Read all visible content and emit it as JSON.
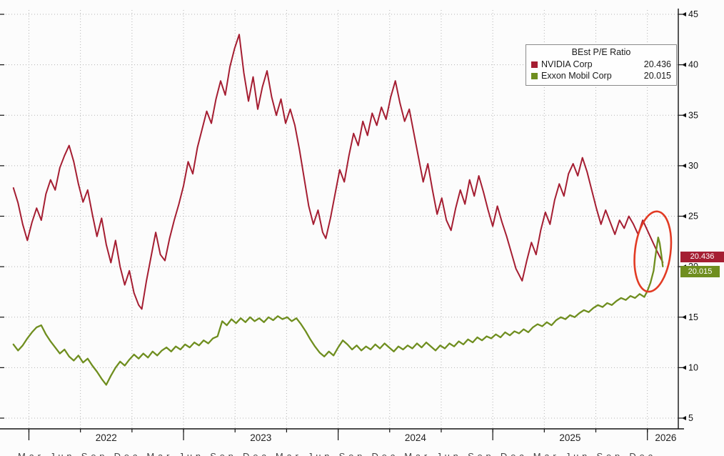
{
  "chart_data": {
    "type": "line",
    "title": "BEst P/E Ratio",
    "xlabel": "",
    "ylabel": "",
    "grid": "dotted",
    "x_axis": {
      "range": [
        2021.85,
        2026.2
      ],
      "ticks": [
        2022,
        2023,
        2024,
        2025,
        2026
      ],
      "tick_labels": [
        "2022",
        "2023",
        "2024",
        "2025",
        "2026"
      ],
      "clipped_month_row": "Mar Jun Sep Dec Mar Jun Sep Dec Mar Jun Sep Dec Mar Jun Sep Dec Mar Jun Sep Dec"
    },
    "y_axis": {
      "side": "right",
      "range": [
        5,
        45
      ],
      "ticks": [
        45,
        40,
        35,
        30,
        25,
        20,
        15,
        10,
        5
      ]
    },
    "legend": {
      "position": "top-right",
      "title": "BEst P/E Ratio",
      "entries": [
        {
          "label": "NVIDIA Corp",
          "value": "20.436"
        },
        {
          "label": "Exxon Mobil Corp",
          "value": "20.015"
        }
      ]
    },
    "last_value_boxes": {
      "nvidia": "20.436",
      "exxon": "20.015"
    },
    "annotations": [
      {
        "type": "ellipse",
        "purpose": "highlight-convergence",
        "x": 2026.035,
        "y": 21.5,
        "rx_years": 0.115,
        "ry_value": 4.0,
        "rotation_deg": 7,
        "color": "#e23b24"
      }
    ],
    "series": [
      {
        "name": "NVIDIA Corp",
        "color": "#a51e32",
        "last_value": 20.436,
        "points": [
          [
            2021.9,
            27.8
          ],
          [
            2021.93,
            26.3
          ],
          [
            2021.96,
            24.2
          ],
          [
            2021.99,
            22.6
          ],
          [
            2022.02,
            24.4
          ],
          [
            2022.05,
            25.8
          ],
          [
            2022.08,
            24.6
          ],
          [
            2022.11,
            27.2
          ],
          [
            2022.14,
            28.6
          ],
          [
            2022.17,
            27.6
          ],
          [
            2022.2,
            29.8
          ],
          [
            2022.23,
            31.0
          ],
          [
            2022.26,
            32.0
          ],
          [
            2022.29,
            30.4
          ],
          [
            2022.32,
            28.2
          ],
          [
            2022.35,
            26.4
          ],
          [
            2022.38,
            27.6
          ],
          [
            2022.41,
            25.2
          ],
          [
            2022.44,
            23.0
          ],
          [
            2022.47,
            24.8
          ],
          [
            2022.5,
            22.2
          ],
          [
            2022.53,
            20.4
          ],
          [
            2022.56,
            22.6
          ],
          [
            2022.59,
            20.0
          ],
          [
            2022.62,
            18.2
          ],
          [
            2022.65,
            19.6
          ],
          [
            2022.68,
            17.4
          ],
          [
            2022.71,
            16.2
          ],
          [
            2022.73,
            15.8
          ],
          [
            2022.76,
            18.6
          ],
          [
            2022.79,
            21.0
          ],
          [
            2022.82,
            23.4
          ],
          [
            2022.85,
            21.2
          ],
          [
            2022.88,
            20.6
          ],
          [
            2022.91,
            22.8
          ],
          [
            2022.94,
            24.6
          ],
          [
            2022.97,
            26.2
          ],
          [
            2023.0,
            28.0
          ],
          [
            2023.03,
            30.4
          ],
          [
            2023.06,
            29.2
          ],
          [
            2023.09,
            31.8
          ],
          [
            2023.12,
            33.6
          ],
          [
            2023.15,
            35.4
          ],
          [
            2023.18,
            34.2
          ],
          [
            2023.21,
            36.6
          ],
          [
            2023.24,
            38.4
          ],
          [
            2023.27,
            37.0
          ],
          [
            2023.3,
            39.8
          ],
          [
            2023.33,
            41.6
          ],
          [
            2023.36,
            43.0
          ],
          [
            2023.39,
            39.2
          ],
          [
            2023.42,
            36.4
          ],
          [
            2023.45,
            38.8
          ],
          [
            2023.48,
            35.6
          ],
          [
            2023.51,
            37.8
          ],
          [
            2023.54,
            39.4
          ],
          [
            2023.57,
            36.8
          ],
          [
            2023.6,
            35.0
          ],
          [
            2023.63,
            36.6
          ],
          [
            2023.66,
            34.2
          ],
          [
            2023.69,
            35.6
          ],
          [
            2023.72,
            34.0
          ],
          [
            2023.75,
            31.6
          ],
          [
            2023.78,
            28.8
          ],
          [
            2023.81,
            26.0
          ],
          [
            2023.84,
            24.2
          ],
          [
            2023.87,
            25.6
          ],
          [
            2023.9,
            23.4
          ],
          [
            2023.92,
            22.8
          ],
          [
            2023.95,
            24.8
          ],
          [
            2023.98,
            27.2
          ],
          [
            2024.01,
            29.6
          ],
          [
            2024.04,
            28.4
          ],
          [
            2024.07,
            31.0
          ],
          [
            2024.1,
            33.2
          ],
          [
            2024.13,
            32.0
          ],
          [
            2024.16,
            34.4
          ],
          [
            2024.19,
            33.0
          ],
          [
            2024.22,
            35.2
          ],
          [
            2024.25,
            34.0
          ],
          [
            2024.28,
            35.8
          ],
          [
            2024.31,
            34.6
          ],
          [
            2024.34,
            36.8
          ],
          [
            2024.37,
            38.4
          ],
          [
            2024.4,
            36.2
          ],
          [
            2024.43,
            34.4
          ],
          [
            2024.46,
            35.6
          ],
          [
            2024.49,
            33.2
          ],
          [
            2024.52,
            30.8
          ],
          [
            2024.55,
            28.4
          ],
          [
            2024.58,
            30.2
          ],
          [
            2024.61,
            27.6
          ],
          [
            2024.64,
            25.2
          ],
          [
            2024.67,
            26.8
          ],
          [
            2024.7,
            24.6
          ],
          [
            2024.73,
            23.6
          ],
          [
            2024.76,
            25.8
          ],
          [
            2024.79,
            27.6
          ],
          [
            2024.82,
            26.2
          ],
          [
            2024.85,
            28.6
          ],
          [
            2024.88,
            27.0
          ],
          [
            2024.91,
            29.0
          ],
          [
            2024.94,
            27.4
          ],
          [
            2024.97,
            25.6
          ],
          [
            2025.0,
            24.0
          ],
          [
            2025.03,
            26.0
          ],
          [
            2025.06,
            24.4
          ],
          [
            2025.09,
            23.0
          ],
          [
            2025.12,
            21.4
          ],
          [
            2025.15,
            19.8
          ],
          [
            2025.19,
            18.6
          ],
          [
            2025.22,
            20.6
          ],
          [
            2025.25,
            22.4
          ],
          [
            2025.28,
            21.2
          ],
          [
            2025.31,
            23.6
          ],
          [
            2025.34,
            25.4
          ],
          [
            2025.37,
            24.2
          ],
          [
            2025.4,
            26.6
          ],
          [
            2025.43,
            28.2
          ],
          [
            2025.46,
            27.0
          ],
          [
            2025.49,
            29.2
          ],
          [
            2025.52,
            30.2
          ],
          [
            2025.55,
            29.0
          ],
          [
            2025.58,
            30.8
          ],
          [
            2025.61,
            29.4
          ],
          [
            2025.64,
            27.6
          ],
          [
            2025.67,
            25.8
          ],
          [
            2025.7,
            24.2
          ],
          [
            2025.73,
            25.6
          ],
          [
            2025.76,
            24.4
          ],
          [
            2025.79,
            23.2
          ],
          [
            2025.82,
            24.6
          ],
          [
            2025.85,
            23.8
          ],
          [
            2025.88,
            25.0
          ],
          [
            2025.91,
            24.2
          ],
          [
            2025.94,
            23.2
          ],
          [
            2025.97,
            24.6
          ],
          [
            2026.0,
            23.6
          ],
          [
            2026.03,
            22.6
          ],
          [
            2026.06,
            21.6
          ],
          [
            2026.08,
            21.0
          ],
          [
            2026.1,
            20.436
          ]
        ]
      },
      {
        "name": "Exxon Mobil Corp",
        "color": "#6f8e1f",
        "last_value": 20.015,
        "points": [
          [
            2021.9,
            12.3
          ],
          [
            2021.93,
            11.7
          ],
          [
            2021.96,
            12.2
          ],
          [
            2021.99,
            12.9
          ],
          [
            2022.02,
            13.5
          ],
          [
            2022.05,
            14.0
          ],
          [
            2022.08,
            14.2
          ],
          [
            2022.11,
            13.3
          ],
          [
            2022.14,
            12.6
          ],
          [
            2022.17,
            12.0
          ],
          [
            2022.2,
            11.4
          ],
          [
            2022.23,
            11.8
          ],
          [
            2022.26,
            11.1
          ],
          [
            2022.29,
            10.7
          ],
          [
            2022.32,
            11.2
          ],
          [
            2022.35,
            10.5
          ],
          [
            2022.38,
            10.9
          ],
          [
            2022.41,
            10.2
          ],
          [
            2022.44,
            9.6
          ],
          [
            2022.47,
            8.9
          ],
          [
            2022.5,
            8.3
          ],
          [
            2022.53,
            9.2
          ],
          [
            2022.56,
            10.0
          ],
          [
            2022.59,
            10.6
          ],
          [
            2022.62,
            10.2
          ],
          [
            2022.65,
            10.8
          ],
          [
            2022.68,
            11.3
          ],
          [
            2022.71,
            10.9
          ],
          [
            2022.74,
            11.4
          ],
          [
            2022.77,
            11.0
          ],
          [
            2022.8,
            11.6
          ],
          [
            2022.83,
            11.2
          ],
          [
            2022.86,
            11.7
          ],
          [
            2022.89,
            12.0
          ],
          [
            2022.92,
            11.6
          ],
          [
            2022.95,
            12.1
          ],
          [
            2022.98,
            11.8
          ],
          [
            2023.01,
            12.3
          ],
          [
            2023.04,
            12.0
          ],
          [
            2023.07,
            12.5
          ],
          [
            2023.1,
            12.2
          ],
          [
            2023.13,
            12.7
          ],
          [
            2023.16,
            12.4
          ],
          [
            2023.19,
            12.9
          ],
          [
            2023.22,
            13.1
          ],
          [
            2023.25,
            14.6
          ],
          [
            2023.28,
            14.2
          ],
          [
            2023.31,
            14.8
          ],
          [
            2023.34,
            14.4
          ],
          [
            2023.37,
            14.9
          ],
          [
            2023.4,
            14.5
          ],
          [
            2023.43,
            15.0
          ],
          [
            2023.46,
            14.6
          ],
          [
            2023.49,
            14.9
          ],
          [
            2023.52,
            14.5
          ],
          [
            2023.55,
            15.0
          ],
          [
            2023.58,
            14.7
          ],
          [
            2023.61,
            15.1
          ],
          [
            2023.64,
            14.8
          ],
          [
            2023.67,
            15.0
          ],
          [
            2023.7,
            14.6
          ],
          [
            2023.73,
            14.9
          ],
          [
            2023.76,
            14.3
          ],
          [
            2023.79,
            13.6
          ],
          [
            2023.82,
            12.8
          ],
          [
            2023.85,
            12.1
          ],
          [
            2023.88,
            11.5
          ],
          [
            2023.91,
            11.1
          ],
          [
            2023.94,
            11.6
          ],
          [
            2023.97,
            11.2
          ],
          [
            2024.0,
            12.0
          ],
          [
            2024.03,
            12.7
          ],
          [
            2024.06,
            12.3
          ],
          [
            2024.09,
            11.8
          ],
          [
            2024.12,
            12.2
          ],
          [
            2024.15,
            11.7
          ],
          [
            2024.18,
            12.1
          ],
          [
            2024.21,
            11.8
          ],
          [
            2024.24,
            12.3
          ],
          [
            2024.27,
            11.9
          ],
          [
            2024.3,
            12.4
          ],
          [
            2024.33,
            12.0
          ],
          [
            2024.36,
            11.6
          ],
          [
            2024.39,
            12.1
          ],
          [
            2024.42,
            11.8
          ],
          [
            2024.45,
            12.2
          ],
          [
            2024.48,
            11.9
          ],
          [
            2024.51,
            12.4
          ],
          [
            2024.54,
            12.0
          ],
          [
            2024.57,
            12.5
          ],
          [
            2024.6,
            12.1
          ],
          [
            2024.63,
            11.7
          ],
          [
            2024.66,
            12.2
          ],
          [
            2024.69,
            11.9
          ],
          [
            2024.72,
            12.4
          ],
          [
            2024.75,
            12.1
          ],
          [
            2024.78,
            12.6
          ],
          [
            2024.81,
            12.3
          ],
          [
            2024.84,
            12.8
          ],
          [
            2024.87,
            12.5
          ],
          [
            2024.9,
            13.0
          ],
          [
            2024.93,
            12.7
          ],
          [
            2024.96,
            13.1
          ],
          [
            2024.99,
            12.9
          ],
          [
            2025.02,
            13.3
          ],
          [
            2025.05,
            13.0
          ],
          [
            2025.08,
            13.5
          ],
          [
            2025.11,
            13.2
          ],
          [
            2025.14,
            13.6
          ],
          [
            2025.17,
            13.4
          ],
          [
            2025.2,
            13.8
          ],
          [
            2025.23,
            13.5
          ],
          [
            2025.26,
            14.0
          ],
          [
            2025.29,
            14.3
          ],
          [
            2025.32,
            14.1
          ],
          [
            2025.35,
            14.5
          ],
          [
            2025.38,
            14.2
          ],
          [
            2025.41,
            14.7
          ],
          [
            2025.44,
            15.0
          ],
          [
            2025.47,
            14.8
          ],
          [
            2025.5,
            15.2
          ],
          [
            2025.53,
            15.0
          ],
          [
            2025.56,
            15.4
          ],
          [
            2025.59,
            15.7
          ],
          [
            2025.62,
            15.5
          ],
          [
            2025.65,
            15.9
          ],
          [
            2025.68,
            16.2
          ],
          [
            2025.71,
            16.0
          ],
          [
            2025.74,
            16.4
          ],
          [
            2025.77,
            16.2
          ],
          [
            2025.8,
            16.6
          ],
          [
            2025.83,
            16.9
          ],
          [
            2025.86,
            16.7
          ],
          [
            2025.89,
            17.1
          ],
          [
            2025.92,
            16.9
          ],
          [
            2025.95,
            17.3
          ],
          [
            2025.98,
            17.0
          ],
          [
            2026.0,
            17.6
          ],
          [
            2026.02,
            18.4
          ],
          [
            2026.04,
            19.6
          ],
          [
            2026.05,
            20.8
          ],
          [
            2026.06,
            21.9
          ],
          [
            2026.07,
            22.9
          ],
          [
            2026.08,
            22.3
          ],
          [
            2026.09,
            21.2
          ],
          [
            2026.1,
            20.015
          ]
        ]
      }
    ]
  }
}
